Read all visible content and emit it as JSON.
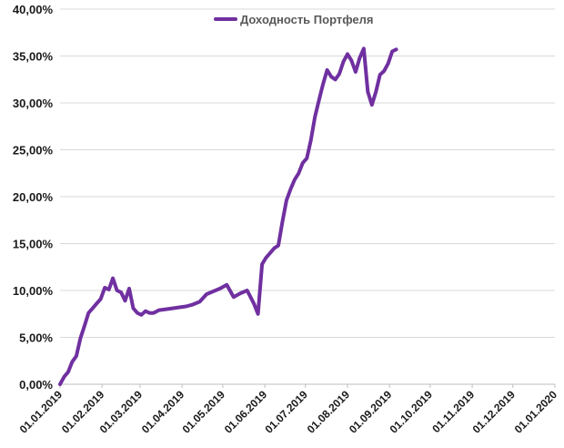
{
  "chart_data": {
    "type": "line",
    "title": "",
    "xlabel": "",
    "ylabel": "",
    "ylim": [
      0,
      40
    ],
    "y_ticks": [
      "0,00%",
      "5,00%",
      "10,00%",
      "15,00%",
      "20,00%",
      "25,00%",
      "30,00%",
      "35,00%",
      "40,00%"
    ],
    "x_ticks": [
      "01.01.2019",
      "01.02.2019",
      "01.03.2019",
      "01.04.2019",
      "01.05.2019",
      "01.06.2019",
      "01.07.2019",
      "01.08.2019",
      "01.09.2019",
      "01.10.2019",
      "01.11.2019",
      "01.12.2019",
      "01.01.2020"
    ],
    "x_range": [
      "2019-01-01",
      "2020-01-01"
    ],
    "grid": "horizontal",
    "legend_position": "top-center",
    "line_color": "#7030A0",
    "series": [
      {
        "name": "Доходность Портфеля",
        "x": [
          "2019-01-01",
          "2019-01-04",
          "2019-01-07",
          "2019-01-10",
          "2019-01-13",
          "2019-01-16",
          "2019-01-19",
          "2019-01-22",
          "2019-01-25",
          "2019-01-28",
          "2019-01-31",
          "2019-02-03",
          "2019-02-06",
          "2019-02-09",
          "2019-02-12",
          "2019-02-15",
          "2019-02-18",
          "2019-02-21",
          "2019-02-24",
          "2019-02-27",
          "2019-03-02",
          "2019-03-05",
          "2019-03-08",
          "2019-03-11",
          "2019-03-15",
          "2019-03-20",
          "2019-03-25",
          "2019-03-30",
          "2019-04-04",
          "2019-04-09",
          "2019-04-14",
          "2019-04-19",
          "2019-04-24",
          "2019-04-29",
          "2019-05-04",
          "2019-05-09",
          "2019-05-14",
          "2019-05-19",
          "2019-05-24",
          "2019-05-27",
          "2019-05-30",
          "2019-06-02",
          "2019-06-05",
          "2019-06-08",
          "2019-06-11",
          "2019-06-14",
          "2019-06-17",
          "2019-06-20",
          "2019-06-23",
          "2019-06-26",
          "2019-06-29",
          "2019-07-02",
          "2019-07-05",
          "2019-07-08",
          "2019-07-11",
          "2019-07-14",
          "2019-07-17",
          "2019-07-20",
          "2019-07-23",
          "2019-07-26",
          "2019-07-29",
          "2019-08-01",
          "2019-08-04",
          "2019-08-07",
          "2019-08-10",
          "2019-08-13",
          "2019-08-16",
          "2019-08-19",
          "2019-08-22",
          "2019-08-25",
          "2019-08-28",
          "2019-08-31",
          "2019-09-03",
          "2019-09-06"
        ],
        "values": [
          0.0,
          0.8,
          1.3,
          2.4,
          3.0,
          4.9,
          6.2,
          7.6,
          8.1,
          8.6,
          9.1,
          10.3,
          10.1,
          11.3,
          10.0,
          9.8,
          8.9,
          10.2,
          8.1,
          7.6,
          7.4,
          7.8,
          7.6,
          7.6,
          7.9,
          8.0,
          8.1,
          8.2,
          8.3,
          8.5,
          8.8,
          9.6,
          9.9,
          10.2,
          10.6,
          9.3,
          9.7,
          10.0,
          8.6,
          7.5,
          12.8,
          13.5,
          14.0,
          14.5,
          14.8,
          17.3,
          19.6,
          20.8,
          21.8,
          22.5,
          23.6,
          24.1,
          26.0,
          28.5,
          30.3,
          32.0,
          33.5,
          32.8,
          32.5,
          33.1,
          34.4,
          35.2,
          34.5,
          33.3,
          34.8,
          35.8,
          31.2,
          29.8,
          31.2,
          33.0,
          33.4,
          34.2,
          35.5,
          35.7
        ]
      }
    ]
  }
}
